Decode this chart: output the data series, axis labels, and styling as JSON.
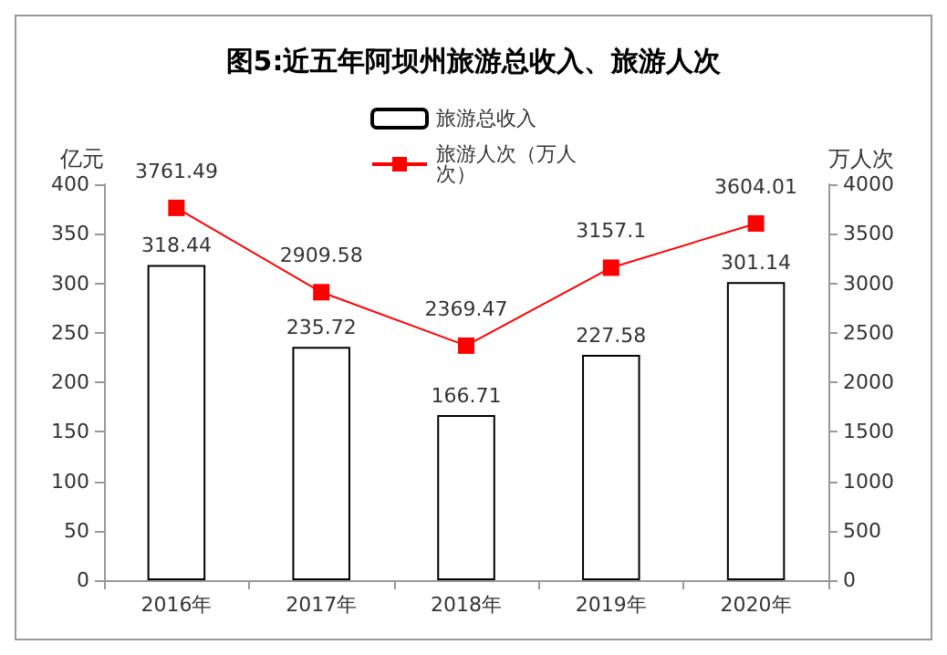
{
  "chart_data": {
    "type": "bar",
    "title": "图5:近五年阿坝州旅游总收入、旅游人次",
    "ylabel": "亿元",
    "y2label": "万人次",
    "categories": [
      "2016年",
      "2017年",
      "2018年",
      "2019年",
      "2020年"
    ],
    "series": [
      {
        "name": "旅游总收入",
        "color": "#ffffff",
        "values": [
          318.44,
          235.72,
          166.71,
          227.58,
          301.14
        ]
      },
      {
        "name": "旅游人次（万人次）",
        "type": "line",
        "axis": "y2",
        "color": "#ff0000",
        "values": [
          3761.49,
          2909.58,
          2369.47,
          3157.1,
          3604.01
        ]
      }
    ],
    "ylim": [
      0,
      400
    ],
    "yticks": [
      0,
      50,
      100,
      150,
      200,
      250,
      300,
      350,
      400
    ],
    "y2lim": [
      0,
      4000
    ],
    "y2ticks": [
      0,
      500,
      1000,
      1500,
      2000,
      2500,
      3000,
      3500,
      4000
    ],
    "data_labels": true,
    "legend": "top",
    "grid": false,
    "marker": "square"
  }
}
